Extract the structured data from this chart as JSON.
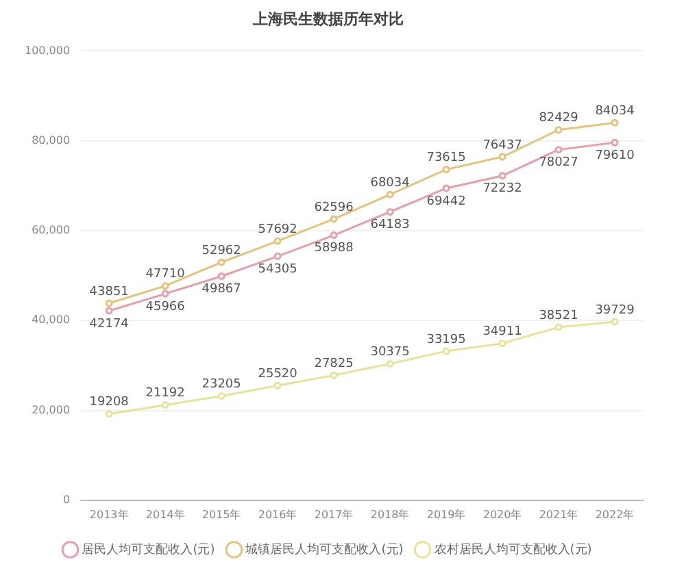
{
  "chart_data": {
    "type": "line",
    "title": "上海民生数据历年对比",
    "categories": [
      "2013年",
      "2014年",
      "2015年",
      "2016年",
      "2017年",
      "2018年",
      "2019年",
      "2020年",
      "2021年",
      "2022年"
    ],
    "series": [
      {
        "name": "居民人均可支配收入(元)",
        "color": "#e8a0a8",
        "values": [
          42174,
          45966,
          49867,
          54305,
          58988,
          64183,
          69442,
          72232,
          78027,
          79610
        ]
      },
      {
        "name": "城镇居民人均可支配收入(元)",
        "color": "#e6c27a",
        "values": [
          43851,
          47710,
          52962,
          57692,
          62596,
          68034,
          73615,
          76437,
          82429,
          84034
        ]
      },
      {
        "name": "农村居民人均可支配收入(元)",
        "color": "#e8e29a",
        "values": [
          19208,
          21192,
          23205,
          25520,
          27825,
          30375,
          33195,
          34911,
          38521,
          39729
        ]
      }
    ],
    "ylim": [
      0,
      100000
    ],
    "yticks": [
      0,
      {
        "value": 20000,
        "label": "20,000"
      },
      {
        "value": 40000,
        "label": "40,000"
      },
      {
        "value": 60000,
        "label": "60,000"
      },
      {
        "value": 80000,
        "label": "80,000"
      },
      {
        "value": 100000,
        "label": "100,000"
      }
    ],
    "grid": "y",
    "legend": "bottom",
    "marker": "circle",
    "line_style": "solid",
    "data_labels": true
  }
}
